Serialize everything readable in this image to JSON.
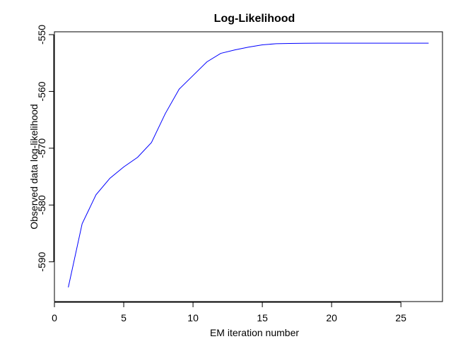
{
  "chart_data": {
    "type": "line",
    "title": "Log-Likelihood",
    "xlabel": "EM iteration number",
    "ylabel": "Observed data log-likelihood",
    "xlim": [
      0,
      28
    ],
    "ylim": [
      -597,
      -549.5
    ],
    "x_ticks": [
      0,
      5,
      10,
      15,
      20,
      25
    ],
    "y_ticks": [
      -550,
      -560,
      -570,
      -580,
      -590
    ],
    "grid": false,
    "legend": "none",
    "series": [
      {
        "color": "#0000ff",
        "x": [
          1,
          2,
          3,
          4,
          5,
          6,
          7,
          8,
          9,
          10,
          11,
          12,
          13,
          14,
          15,
          16,
          17,
          18,
          19,
          20,
          21,
          22,
          23,
          24,
          25,
          26,
          27
        ],
        "y": [
          -594.5,
          -583.3,
          -578.2,
          -575.3,
          -573.3,
          -571.6,
          -569.0,
          -563.9,
          -559.6,
          -557.2,
          -554.8,
          -553.3,
          -552.7,
          -552.2,
          -551.8,
          -551.6,
          -551.55,
          -551.52,
          -551.5,
          -551.5,
          -551.5,
          -551.5,
          -551.5,
          -551.5,
          -551.5,
          -551.5,
          -551.5
        ]
      }
    ]
  }
}
